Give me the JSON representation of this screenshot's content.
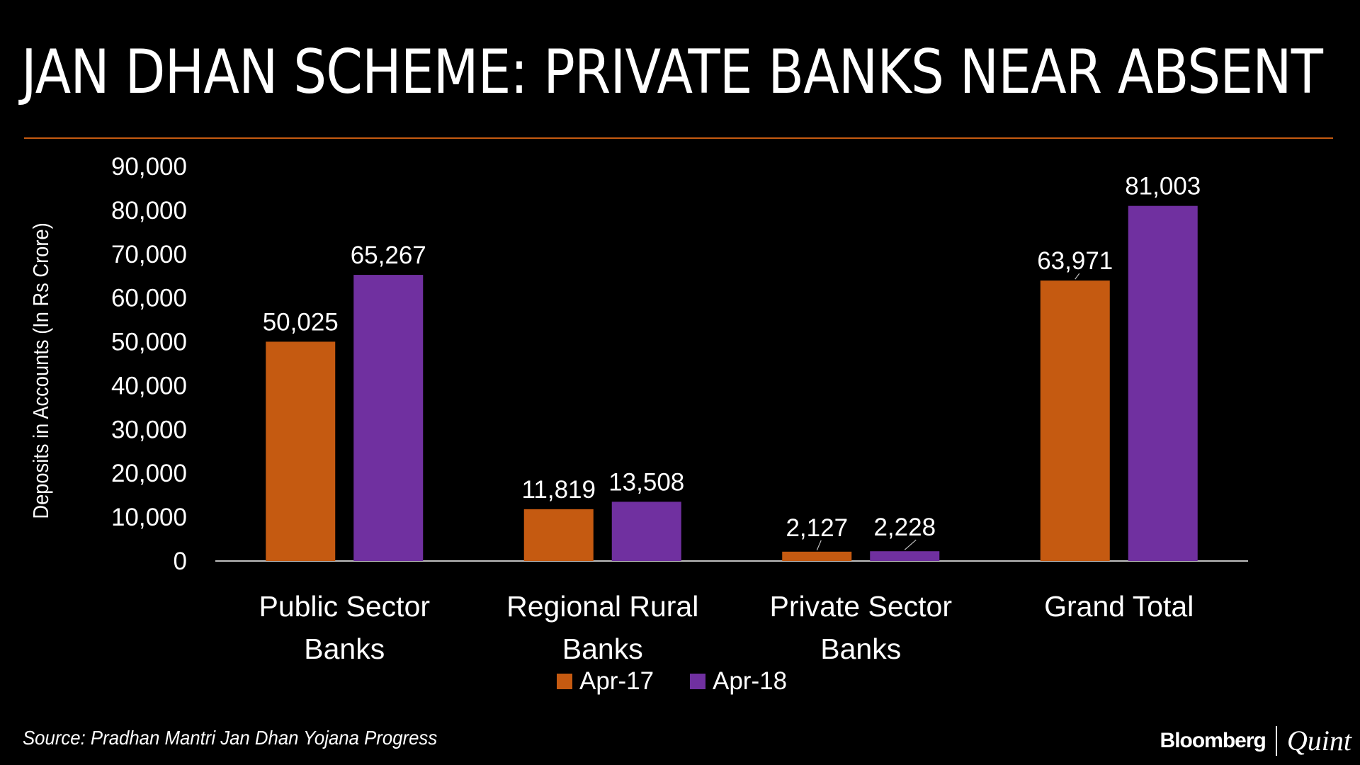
{
  "title": "JAN DHAN SCHEME: PRIVATE BANKS NEAR ABSENT",
  "source": "Source: Pradhan Mantri Jan Dhan Yojana Progress",
  "brand": {
    "name": "Bloomberg",
    "sub": "Quint"
  },
  "colors": {
    "accent_rule": "#c55a11",
    "series_1": "#c55a11",
    "series_2": "#7030a0",
    "background": "#000000"
  },
  "chart_data": {
    "type": "bar",
    "title": "",
    "ylabel": "Deposits in Accounts (In Rs Crore)",
    "xlabel": "",
    "ylim": [
      0,
      90000
    ],
    "yticks": [
      "0",
      "10,000",
      "20,000",
      "30,000",
      "40,000",
      "50,000",
      "60,000",
      "70,000",
      "80,000",
      "90,000"
    ],
    "categories": [
      [
        "Public Sector",
        "Banks"
      ],
      [
        "Regional Rural",
        "Banks"
      ],
      [
        "Private Sector",
        "Banks"
      ],
      [
        "Grand Total"
      ]
    ],
    "series": [
      {
        "name": "Apr-17",
        "color": "#c55a11",
        "values": [
          50025,
          11819,
          2127,
          63971
        ],
        "labels": [
          "50,025",
          "11,819",
          "2,127",
          "63,971"
        ]
      },
      {
        "name": "Apr-18",
        "color": "#7030a0",
        "values": [
          65267,
          13508,
          2228,
          81003
        ],
        "labels": [
          "65,267",
          "13,508",
          "2,228",
          "81,003"
        ]
      }
    ],
    "legend": "bottom",
    "grid": false
  }
}
